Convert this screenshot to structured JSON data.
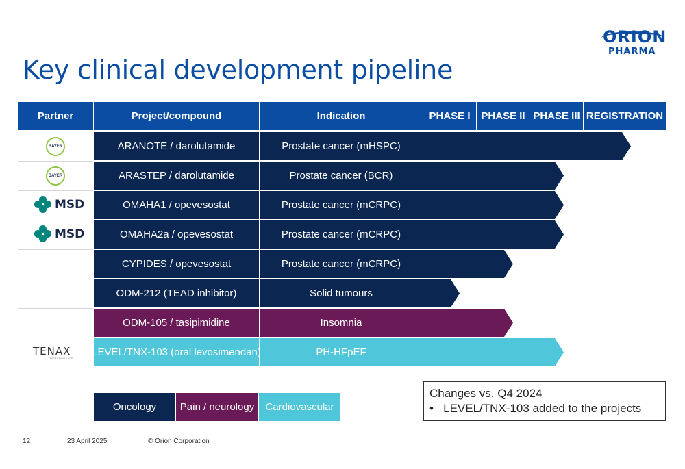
{
  "slide": {
    "title": "Key clinical development pipeline",
    "logo_line1": "ORION",
    "logo_line2": "PHARMA"
  },
  "table": {
    "headers": [
      "Partner",
      "Project/compound",
      "Indication",
      "PHASE I",
      "PHASE II",
      "PHASE III",
      "REGISTRATION"
    ],
    "rows": [
      {
        "partner": "BAYER",
        "project": "ARANOTE / darolutamide",
        "indication": "Prostate cancer (mHSPC)",
        "stage": "Registration",
        "area": "Oncology"
      },
      {
        "partner": "BAYER",
        "project": "ARASTEP / darolutamide",
        "indication": "Prostate cancer (BCR)",
        "stage": "Phase III",
        "area": "Oncology"
      },
      {
        "partner": "MSD",
        "project": "OMAHA1 / opevesostat",
        "indication": "Prostate cancer (mCRPC)",
        "stage": "Phase III",
        "area": "Oncology"
      },
      {
        "partner": "MSD",
        "project": "OMAHA2a / opevesostat",
        "indication": "Prostate cancer (mCRPC)",
        "stage": "Phase III",
        "area": "Oncology"
      },
      {
        "partner": "",
        "project": "CYPIDES / opevesostat",
        "indication": "Prostate cancer (mCRPC)",
        "stage": "Phase II",
        "area": "Oncology"
      },
      {
        "partner": "",
        "project": "ODM-212 (TEAD inhibitor)",
        "indication": "Solid tumours",
        "stage": "Phase I",
        "area": "Oncology"
      },
      {
        "partner": "",
        "project": "ODM-105 / tasipimidine",
        "indication": "Insomnia",
        "stage": "Phase II",
        "area": "Pain / neurology"
      },
      {
        "partner": "TENAX",
        "project": "LEVEL/TNX-103 (oral levosimendan)",
        "indication": "PH-HFpEF",
        "stage": "Phase III",
        "area": "Cardiovascular"
      }
    ]
  },
  "partners": {
    "bayer_text": "BAYER",
    "msd_text": "MSD",
    "tenax_text": "TENAX",
    "tenax_sub": "THERAPEUTICS"
  },
  "legend": [
    "Oncology",
    "Pain / neurology",
    "Cardiovascular"
  ],
  "colors": {
    "header": "#0b4da2",
    "oncology": "#0a2651",
    "pain_neurology": "#6a1a56",
    "cardiovascular": "#4fc6d9"
  },
  "changes": {
    "title": "Changes vs. Q4 2024",
    "items": [
      "LEVEL/TNX-103 added to the projects"
    ]
  },
  "footer": {
    "page": "12",
    "date": "23 April 2025",
    "copyright": "© Orion Corporation"
  }
}
